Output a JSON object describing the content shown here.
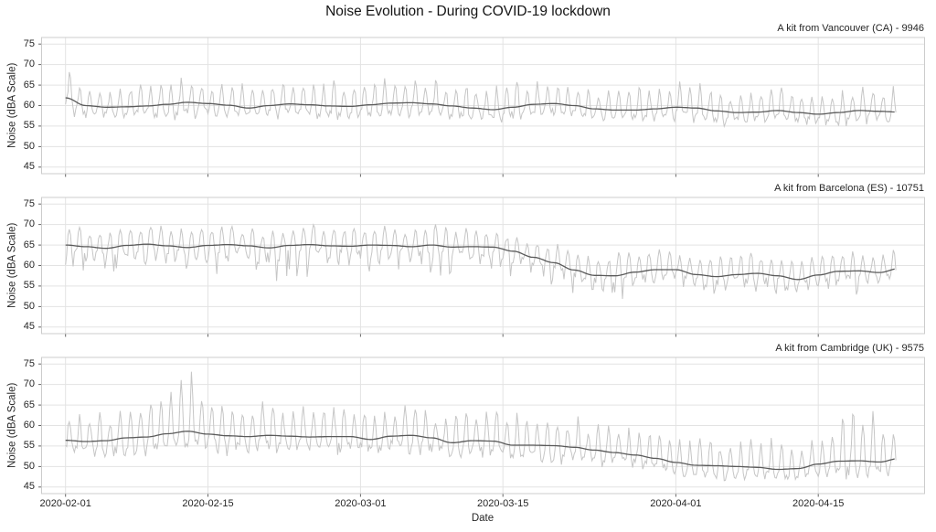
{
  "figure": {
    "title": "Noise Evolution - During COVID-19 lockdown",
    "x_axis_label": "Date",
    "y_axis_label": "Noise (dBA Scale)"
  },
  "colors": {
    "background": "#ffffff",
    "raw_line": "#c6c6c6",
    "smoothed_line": "#5a5a5a",
    "gridline": "#e3e3e3",
    "spine": "#cccccc",
    "tick_mark": "#666666",
    "text": "#262626"
  },
  "axes": {
    "y_ticks": [
      75,
      70,
      65,
      60,
      55,
      50,
      45
    ],
    "y_limits_dBA": [
      43.4,
      76.6
    ],
    "x_tick_labels": [
      "2020-02-01",
      "2020-02-15",
      "2020-03-01",
      "2020-03-15",
      "2020-04-01",
      "2020-04-15"
    ],
    "x_tick_days_from_start": [
      0,
      14,
      29,
      43,
      60,
      74
    ],
    "x_limits_days_from_start": [
      -2.35,
      84.45
    ],
    "grid": true
  },
  "chart_data": {
    "type": "line",
    "title": "Noise Evolution - During COVID-19 lockdown",
    "xlabel": "Date",
    "ylabel": "Noise (dBA Scale)",
    "start_date": "2020-02-01",
    "end_date_approx": "2020-04-22",
    "sample_interval_days": 2,
    "series_description": {
      "raw": "light gray line: sub-daily noise measurements oscillating each day between the peak/trough envelopes",
      "smoothed": "dark gray line: rolling-mean of the noise level"
    },
    "panels": [
      {
        "title": "A kit from Vancouver (CA) - 9946",
        "smoothed_dBA": [
          61.9,
          60.0,
          59.6,
          59.7,
          59.9,
          60.3,
          60.8,
          60.5,
          60.1,
          59.4,
          60.0,
          60.4,
          60.2,
          59.9,
          59.8,
          60.2,
          60.6,
          60.7,
          60.4,
          59.9,
          59.4,
          59.0,
          59.6,
          60.3,
          60.5,
          60.0,
          59.2,
          58.9,
          58.9,
          59.2,
          59.6,
          59.4,
          58.7,
          58.3,
          58.4,
          58.8,
          58.3,
          57.9,
          58.3,
          58.8,
          58.6,
          58.4
        ],
        "daily_peak_amplitude_dBA": [
          5.5,
          5,
          4.8,
          5,
          5,
          5.5,
          5.5,
          5,
          5,
          4.8,
          5,
          5,
          5,
          5,
          4.8,
          5,
          5.2,
          5.2,
          5,
          5,
          4.8,
          4.6,
          5,
          5.2,
          5,
          4.8,
          4.6,
          4.6,
          4.8,
          5,
          5,
          4.8,
          4.6,
          4.5,
          4.6,
          4.8,
          4.6,
          4.5,
          4.6,
          4.8,
          4.6,
          5.5
        ],
        "daily_trough_amplitude_dBA": [
          5,
          4.5,
          4.3,
          4.5,
          4.5,
          5,
          5,
          4.5,
          4.5,
          4.3,
          4.5,
          4.5,
          4.5,
          4.5,
          4.3,
          4.5,
          4.7,
          4.7,
          4.5,
          4.5,
          4.3,
          4.2,
          4.5,
          4.7,
          4.5,
          4.3,
          4.2,
          4.2,
          4.3,
          4.5,
          4.5,
          4.3,
          4.2,
          4,
          4.2,
          4.3,
          4.2,
          4,
          4.2,
          4.3,
          4.2,
          3.5
        ],
        "waveform": {
          "up_exponent": 0.9,
          "down_exponent": 1.1
        }
      },
      {
        "title": "A kit from Barcelona (ES) - 10751",
        "smoothed_dBA": [
          65.0,
          64.6,
          64.2,
          64.9,
          65.2,
          64.8,
          64.4,
          64.9,
          65.1,
          64.8,
          64.3,
          64.9,
          65.1,
          64.8,
          64.7,
          65.0,
          64.9,
          64.6,
          65.0,
          64.5,
          64.6,
          64.5,
          63.5,
          62.0,
          60.7,
          58.9,
          57.6,
          57.5,
          58.4,
          59.0,
          59.0,
          57.8,
          57.3,
          57.8,
          58.1,
          57.5,
          56.6,
          57.7,
          58.6,
          58.7,
          58.3,
          59.3
        ],
        "daily_peak_amplitude_dBA": [
          4,
          4,
          4,
          4.2,
          4.3,
          4,
          4,
          4.2,
          4.3,
          4,
          4,
          4.2,
          4.3,
          4,
          4,
          4.2,
          4,
          4,
          4.2,
          4,
          4,
          4,
          3.8,
          3.8,
          4,
          4.2,
          4.5,
          4.5,
          4.5,
          4.5,
          4.5,
          4.7,
          4.8,
          4.8,
          4.7,
          4.7,
          4.8,
          4.8,
          4.7,
          4.6,
          4.6,
          4.5
        ],
        "daily_trough_amplitude_dBA": [
          10.5,
          10,
          10,
          10.5,
          10.8,
          10.3,
          10,
          10.5,
          10.8,
          10.3,
          10,
          10.5,
          10.8,
          10.3,
          10.2,
          10.5,
          10.3,
          10,
          10.3,
          10,
          9.8,
          9.5,
          9,
          8.5,
          8,
          7.8,
          7.5,
          7.3,
          7.5,
          7.5,
          7,
          7,
          7,
          7.2,
          7,
          6.8,
          6.5,
          6.8,
          7,
          6.8,
          6.5,
          5.5
        ],
        "waveform": {
          "up_exponent": 0.6,
          "down_exponent": 1.8
        }
      },
      {
        "title": "A kit from Cambridge (UK) - 9575",
        "smoothed_dBA": [
          56.4,
          56.1,
          56.3,
          57.0,
          57.2,
          58.0,
          58.6,
          57.9,
          57.5,
          57.3,
          57.6,
          57.4,
          57.2,
          57.3,
          57.3,
          56.6,
          57.4,
          57.6,
          57.0,
          55.8,
          56.3,
          56.2,
          55.2,
          55.2,
          55.1,
          54.7,
          54.0,
          53.4,
          52.8,
          52.0,
          51.0,
          50.3,
          50.2,
          50.0,
          49.8,
          49.3,
          49.5,
          50.6,
          51.3,
          51.4,
          51.1,
          52.0
        ],
        "daily_peak_amplitude_dBA": [
          6,
          6,
          6.2,
          6.5,
          9,
          11,
          13,
          9,
          7,
          6.5,
          6.5,
          6.3,
          6.2,
          6.3,
          6.3,
          6,
          6.5,
          6.5,
          6.3,
          6,
          6.2,
          6.2,
          6,
          6,
          6,
          5.8,
          5.6,
          5.5,
          5.4,
          5.6,
          5.8,
          6,
          6,
          6,
          6.2,
          6,
          6.5,
          7,
          9,
          13,
          10,
          6
        ],
        "daily_trough_amplitude_dBA": [
          6,
          5.8,
          5.8,
          6,
          6.2,
          6.5,
          6.5,
          6.2,
          6,
          5.8,
          6,
          5.8,
          5.8,
          5.8,
          5.8,
          5.6,
          6,
          6,
          5.8,
          5.5,
          5.8,
          5.8,
          5.5,
          5.5,
          5.5,
          5.3,
          5.2,
          5,
          5,
          4.8,
          4.8,
          4.6,
          4.6,
          4.6,
          4.8,
          4.6,
          4.5,
          4.8,
          5,
          5.2,
          5,
          4.5
        ],
        "waveform": {
          "up_exponent": 0.8,
          "down_exponent": 1.25
        }
      }
    ],
    "data_span_days": 81.7
  }
}
